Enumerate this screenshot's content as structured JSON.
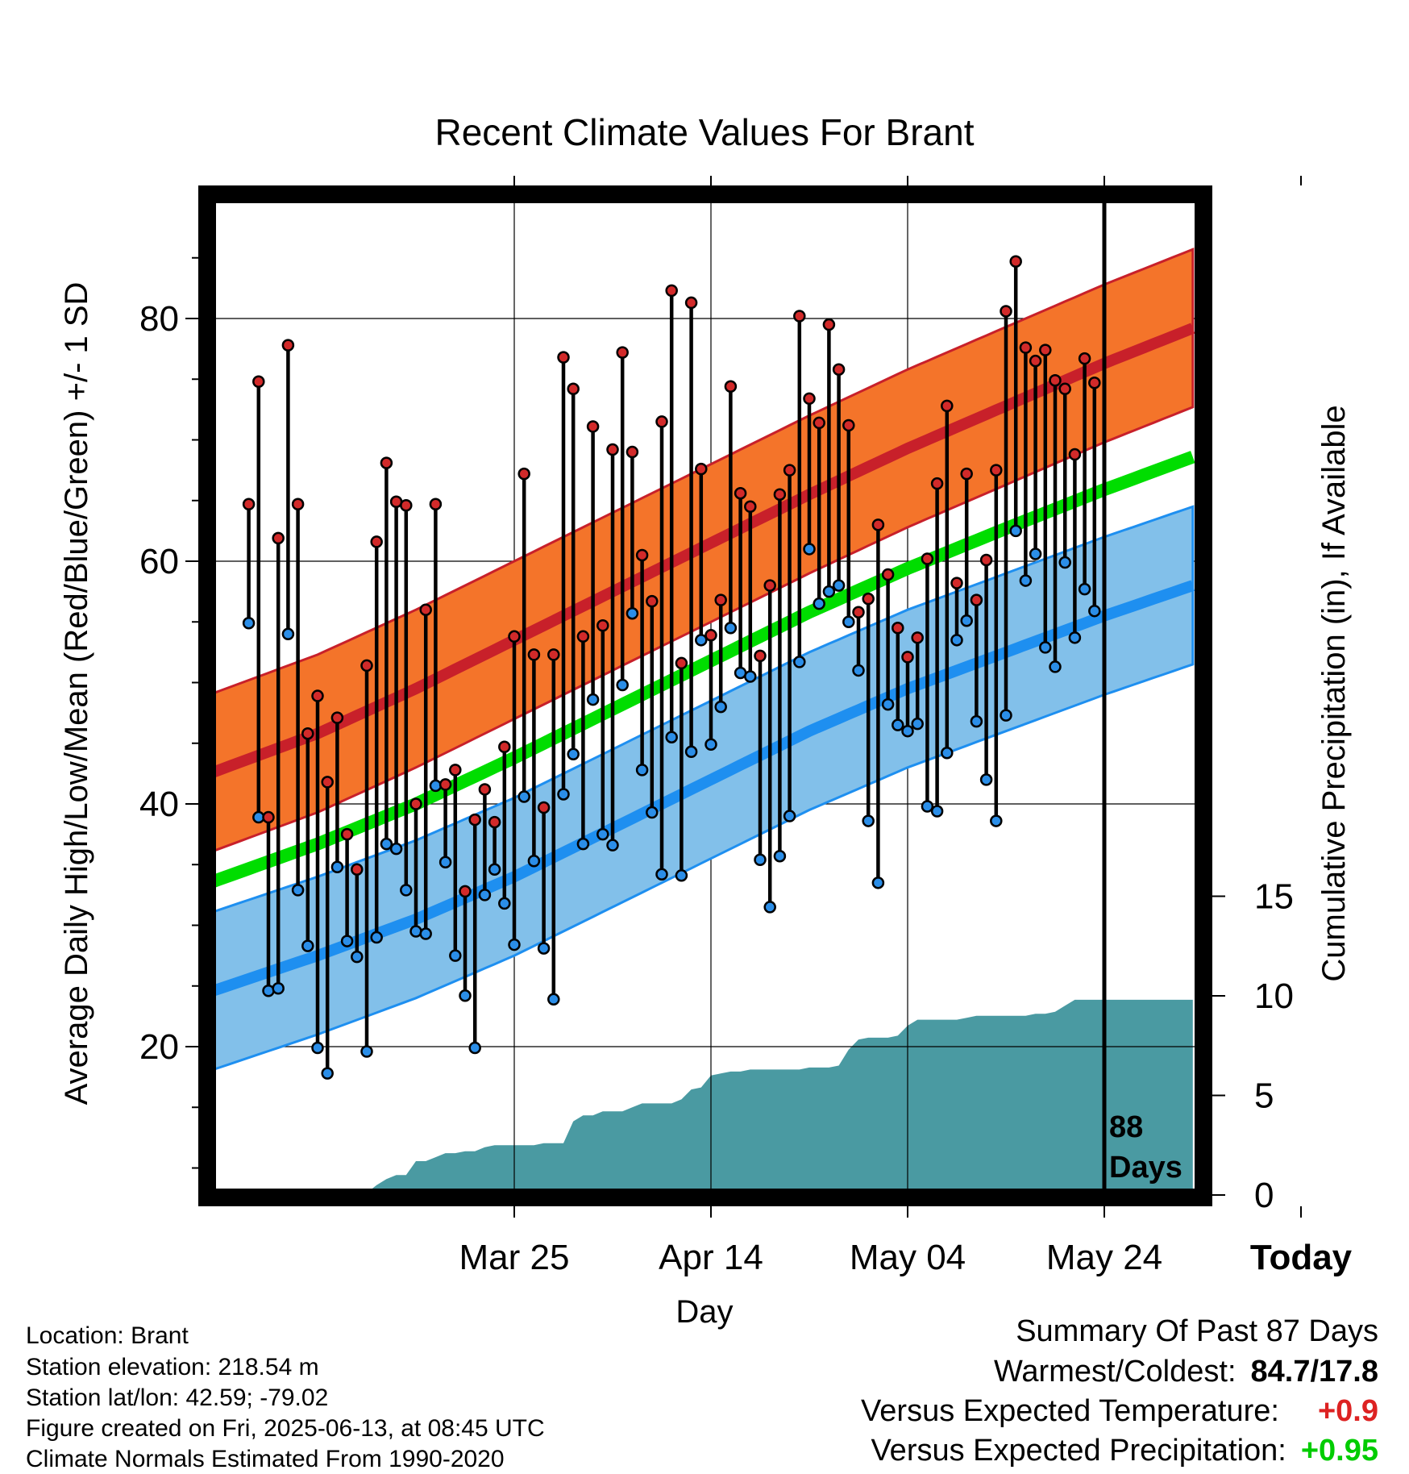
{
  "chart_data": {
    "type": "line",
    "title": "Recent Climate Values For Brant",
    "xlabel": "Day",
    "ylabel": "Average Daily High/Low/Mean (Red/Blue/Green) +/- 1 SD",
    "y2label": "Cumulative Precipitation (in), If Available",
    "x_tick_labels": [
      "Mar 25",
      "Apr 14",
      "May 04",
      "May 24",
      "Today"
    ],
    "y_ticks": [
      20,
      40,
      60,
      80
    ],
    "y2_ticks": [
      0,
      5,
      10,
      15
    ],
    "ylim": [
      8.5,
      90
    ],
    "y2lim": [
      0,
      15
    ],
    "x_range_days": [
      -91,
      9
    ],
    "days_label": "88\nDays",
    "normals": {
      "day": [
        -91,
        -80,
        -70,
        -60,
        -50,
        -40,
        -30,
        -20,
        -10,
        0,
        9
      ],
      "high": [
        42.5,
        45.8,
        49.5,
        53.5,
        57.5,
        61.5,
        65.5,
        69.3,
        72.8,
        76.3,
        79.2
      ],
      "high_sd": 6.5,
      "low": [
        24.5,
        27.5,
        30.5,
        34.0,
        38.0,
        42.0,
        46.0,
        49.5,
        52.5,
        55.5,
        58.0
      ],
      "low_sd": 6.5,
      "mean": [
        33.5,
        36.7,
        40.0,
        43.8,
        47.8,
        51.8,
        55.8,
        59.4,
        62.7,
        65.9,
        68.6
      ]
    },
    "series": [
      {
        "name": "High",
        "values": [
          64.7,
          74.8,
          38.9,
          61.9,
          77.8,
          64.7,
          45.8,
          48.9,
          41.8,
          47.1,
          37.5,
          34.6,
          51.4,
          61.6,
          68.1,
          64.9,
          64.6,
          40.0,
          56.0,
          64.7,
          41.6,
          42.8,
          32.8,
          38.7,
          41.2,
          38.5,
          44.7,
          53.8,
          67.2,
          52.3,
          39.7,
          52.3,
          76.8,
          74.2,
          53.8,
          71.1,
          54.7,
          69.2,
          77.2,
          69.0,
          60.5,
          56.7,
          71.5,
          82.3,
          51.6,
          81.3,
          67.6,
          53.9,
          56.8,
          74.4,
          65.6,
          64.5,
          52.2,
          58.0,
          65.5,
          67.5,
          80.2,
          73.4,
          71.4,
          79.5,
          75.8,
          71.2,
          55.8,
          56.9,
          63.0,
          58.9,
          54.5,
          52.1,
          53.7,
          60.2,
          66.4,
          72.8,
          58.2,
          67.2,
          56.8,
          60.1,
          67.5,
          80.6,
          84.7,
          77.6,
          76.5,
          77.4,
          74.9,
          74.2,
          68.8,
          76.7,
          74.7
        ]
      },
      {
        "name": "Low",
        "values": [
          54.9,
          38.9,
          24.6,
          24.8,
          54.0,
          32.9,
          28.3,
          19.9,
          17.8,
          34.8,
          28.7,
          27.4,
          19.6,
          29.0,
          36.7,
          36.3,
          32.9,
          29.5,
          29.3,
          41.5,
          35.2,
          27.5,
          24.2,
          19.9,
          32.5,
          34.6,
          31.8,
          28.4,
          40.6,
          35.3,
          28.1,
          23.9,
          40.8,
          44.1,
          36.7,
          48.6,
          37.5,
          36.6,
          49.8,
          55.7,
          42.8,
          39.3,
          34.2,
          45.5,
          34.1,
          44.3,
          53.5,
          44.9,
          48.0,
          54.5,
          50.8,
          50.5,
          35.4,
          31.5,
          35.7,
          39.0,
          51.7,
          61.0,
          56.5,
          57.5,
          58.0,
          55.0,
          51.0,
          38.6,
          33.5,
          48.2,
          46.5,
          46.0,
          46.6,
          39.8,
          39.4,
          44.2,
          53.5,
          55.1,
          46.8,
          42.0,
          38.6,
          47.3,
          62.5,
          58.4,
          60.6,
          52.9,
          51.3,
          59.9,
          53.7,
          57.7,
          55.9
        ]
      }
    ],
    "precipitation_cumulative": [
      0,
      0,
      0,
      0,
      0,
      0,
      0,
      0,
      0,
      0,
      0.02,
      0.05,
      0.1,
      0.5,
      0.8,
      1.0,
      1.0,
      1.7,
      1.7,
      1.9,
      2.1,
      2.1,
      2.2,
      2.2,
      2.4,
      2.5,
      2.5,
      2.5,
      2.5,
      2.5,
      2.6,
      2.6,
      2.6,
      3.7,
      4.0,
      4.0,
      4.2,
      4.2,
      4.2,
      4.4,
      4.6,
      4.6,
      4.6,
      4.6,
      4.8,
      5.3,
      5.4,
      6.0,
      6.1,
      6.2,
      6.2,
      6.3,
      6.3,
      6.3,
      6.3,
      6.3,
      6.3,
      6.4,
      6.4,
      6.4,
      6.5,
      7.3,
      7.8,
      7.9,
      7.9,
      7.9,
      8.0,
      8.5,
      8.8,
      8.8,
      8.8,
      8.8,
      8.8,
      8.9,
      9.0,
      9.0,
      9.0,
      9.0,
      9.0,
      9.0,
      9.1,
      9.1,
      9.2,
      9.5,
      9.8,
      9.8,
      9.8,
      9.8
    ]
  },
  "colors": {
    "high_band": "#f4742a",
    "high_mean": "#c8202a",
    "low_band": "#82c0ea",
    "low_mean": "#1e8ff0",
    "mean_line": "#00dd00",
    "precip": "#4a9aa2",
    "warm_value": "#dd2222",
    "wet_value": "#00cc00"
  },
  "info": {
    "location": "Location: Brant",
    "elevation": "Station elevation: 218.54 m",
    "latlon": "Station lat/lon: 42.59; -79.02",
    "created": "Figure created on Fri, 2025-06-13, at 08:45 UTC",
    "normals": "Climate Normals Estimated From 1990-2020"
  },
  "summary": {
    "heading": "Summary Of Past 87 Days",
    "extremes_label": "Warmest/Coldest:",
    "extremes_value": "84.7/17.8",
    "temp_label": "Versus Expected Temperature:",
    "temp_value": "+0.9",
    "precip_label": "Versus Expected Precipitation:",
    "precip_value": "+0.95"
  }
}
